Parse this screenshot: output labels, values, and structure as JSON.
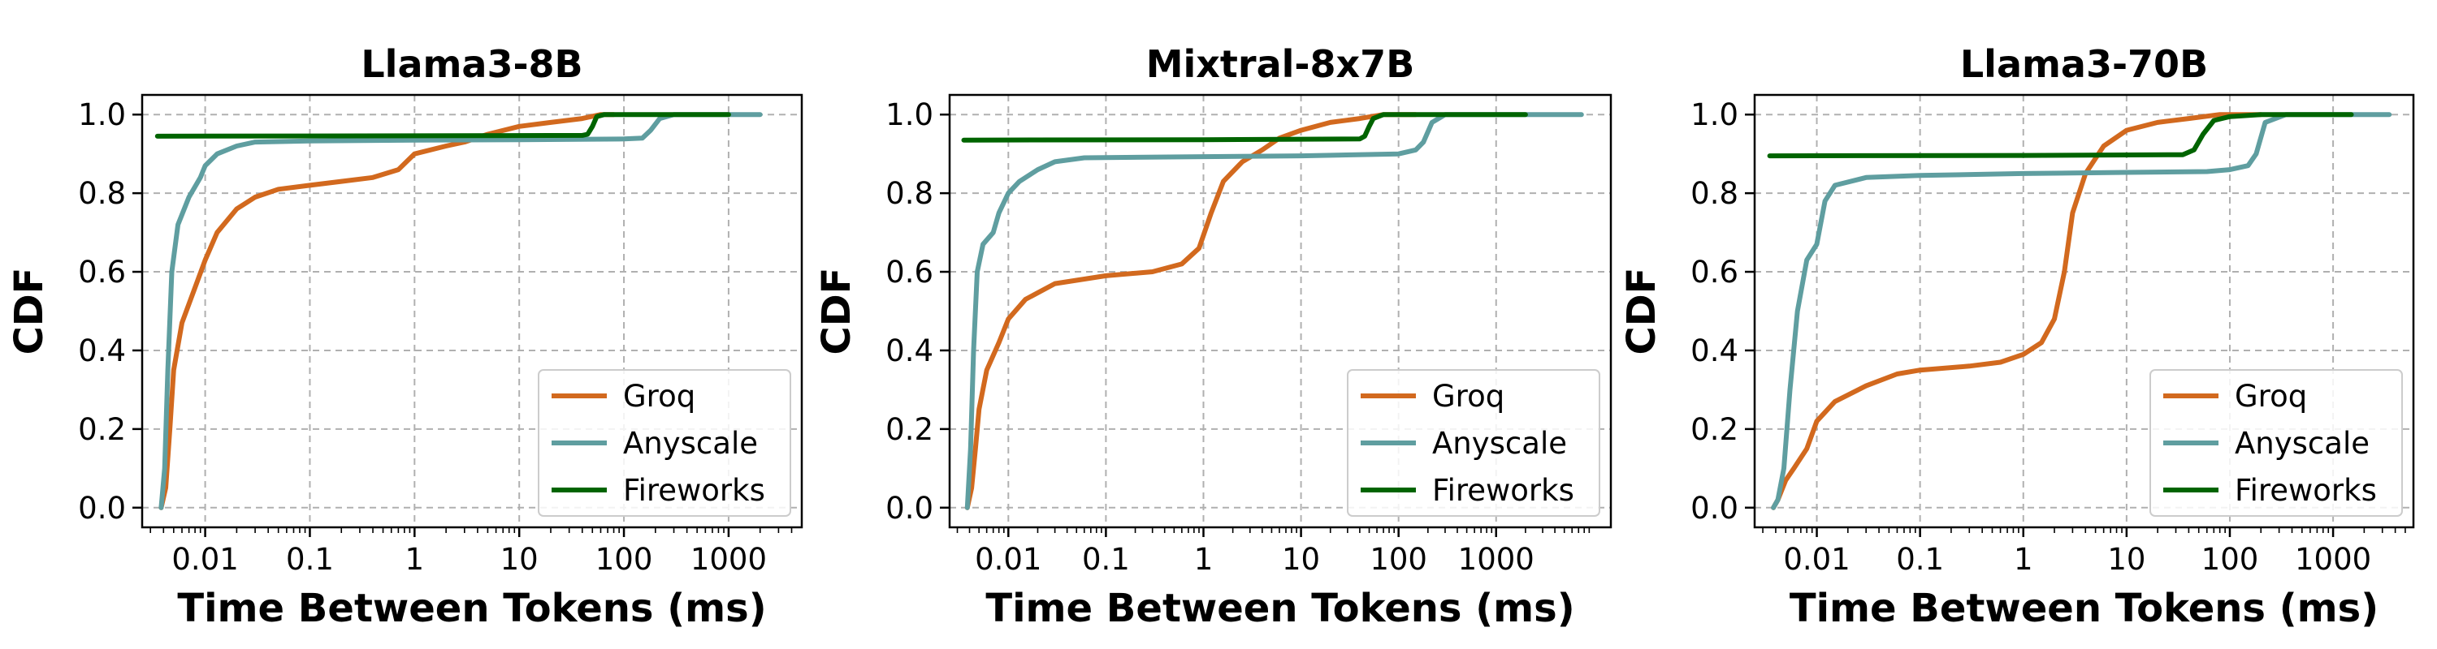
{
  "colors": {
    "Groq": "#d2691e",
    "Anyscale": "#5f9ea0",
    "Fireworks": "#006400"
  },
  "chart_data": [
    {
      "type": "line",
      "title": "Llama3-8B",
      "xlabel": "Time Between Tokens (ms)",
      "ylabel": "CDF",
      "xscale": "log",
      "xlim": [
        0.0025,
        5000
      ],
      "ylim": [
        -0.05,
        1.05
      ],
      "xticks": [
        0.01,
        0.1,
        1,
        10,
        100,
        1000
      ],
      "xtick_labels": [
        "0.01",
        "0.1",
        "1",
        "10",
        "100",
        "1000"
      ],
      "yticks": [
        0.0,
        0.2,
        0.4,
        0.6,
        0.8,
        1.0
      ],
      "ytick_labels": [
        "0.0",
        "0.2",
        "0.4",
        "0.6",
        "0.8",
        "1.0"
      ],
      "grid": true,
      "legend": "lower-right",
      "series": [
        {
          "name": "Groq",
          "points": [
            [
              0.0038,
              0
            ],
            [
              0.0042,
              0.05
            ],
            [
              0.0046,
              0.2
            ],
            [
              0.005,
              0.35
            ],
            [
              0.006,
              0.47
            ],
            [
              0.008,
              0.56
            ],
            [
              0.01,
              0.63
            ],
            [
              0.013,
              0.7
            ],
            [
              0.02,
              0.76
            ],
            [
              0.03,
              0.79
            ],
            [
              0.05,
              0.81
            ],
            [
              0.1,
              0.82
            ],
            [
              0.2,
              0.83
            ],
            [
              0.4,
              0.84
            ],
            [
              0.7,
              0.86
            ],
            [
              1,
              0.9
            ],
            [
              2,
              0.92
            ],
            [
              3,
              0.93
            ],
            [
              5,
              0.95
            ],
            [
              10,
              0.97
            ],
            [
              20,
              0.98
            ],
            [
              40,
              0.99
            ],
            [
              60,
              1.0
            ],
            [
              80,
              1.0
            ]
          ]
        },
        {
          "name": "Anyscale",
          "points": [
            [
              0.0038,
              0
            ],
            [
              0.0041,
              0.1
            ],
            [
              0.0044,
              0.35
            ],
            [
              0.0048,
              0.6
            ],
            [
              0.0055,
              0.72
            ],
            [
              0.007,
              0.79
            ],
            [
              0.009,
              0.84
            ],
            [
              0.01,
              0.87
            ],
            [
              0.013,
              0.9
            ],
            [
              0.02,
              0.92
            ],
            [
              0.03,
              0.93
            ],
            [
              0.1,
              0.933
            ],
            [
              1,
              0.935
            ],
            [
              10,
              0.936
            ],
            [
              100,
              0.938
            ],
            [
              150,
              0.94
            ],
            [
              180,
              0.96
            ],
            [
              220,
              0.99
            ],
            [
              300,
              1.0
            ],
            [
              2000,
              1.0
            ]
          ]
        },
        {
          "name": "Fireworks",
          "points": [
            [
              0.0035,
              0.945
            ],
            [
              1,
              0.946
            ],
            [
              40,
              0.947
            ],
            [
              45,
              0.95
            ],
            [
              50,
              0.97
            ],
            [
              55,
              0.995
            ],
            [
              65,
              1.0
            ],
            [
              1000,
              1.0
            ]
          ]
        }
      ]
    },
    {
      "type": "line",
      "title": "Mixtral-8x7B",
      "xlabel": "Time Between Tokens (ms)",
      "ylabel": "CDF",
      "xscale": "log",
      "xlim": [
        0.0025,
        15000
      ],
      "ylim": [
        -0.05,
        1.05
      ],
      "xticks": [
        0.01,
        0.1,
        1,
        10,
        100,
        1000
      ],
      "xtick_labels": [
        "0.01",
        "0.1",
        "1",
        "10",
        "100",
        "1000"
      ],
      "yticks": [
        0.0,
        0.2,
        0.4,
        0.6,
        0.8,
        1.0
      ],
      "ytick_labels": [
        "0.0",
        "0.2",
        "0.4",
        "0.6",
        "0.8",
        "1.0"
      ],
      "grid": true,
      "legend": "lower-right",
      "series": [
        {
          "name": "Groq",
          "points": [
            [
              0.0038,
              0
            ],
            [
              0.0042,
              0.05
            ],
            [
              0.0046,
              0.15
            ],
            [
              0.005,
              0.25
            ],
            [
              0.006,
              0.35
            ],
            [
              0.008,
              0.42
            ],
            [
              0.01,
              0.48
            ],
            [
              0.015,
              0.53
            ],
            [
              0.03,
              0.57
            ],
            [
              0.1,
              0.59
            ],
            [
              0.3,
              0.6
            ],
            [
              0.6,
              0.62
            ],
            [
              0.9,
              0.66
            ],
            [
              1.2,
              0.75
            ],
            [
              1.6,
              0.83
            ],
            [
              2.5,
              0.88
            ],
            [
              4,
              0.91
            ],
            [
              6,
              0.94
            ],
            [
              10,
              0.96
            ],
            [
              20,
              0.98
            ],
            [
              40,
              0.99
            ],
            [
              70,
              1.0
            ],
            [
              150,
              1.0
            ]
          ]
        },
        {
          "name": "Anyscale",
          "points": [
            [
              0.0038,
              0
            ],
            [
              0.0041,
              0.15
            ],
            [
              0.0044,
              0.4
            ],
            [
              0.0048,
              0.6
            ],
            [
              0.0055,
              0.67
            ],
            [
              0.007,
              0.7
            ],
            [
              0.008,
              0.75
            ],
            [
              0.01,
              0.8
            ],
            [
              0.013,
              0.83
            ],
            [
              0.02,
              0.86
            ],
            [
              0.03,
              0.88
            ],
            [
              0.06,
              0.89
            ],
            [
              1,
              0.893
            ],
            [
              10,
              0.895
            ],
            [
              100,
              0.9
            ],
            [
              150,
              0.91
            ],
            [
              180,
              0.93
            ],
            [
              220,
              0.98
            ],
            [
              300,
              1.0
            ],
            [
              7500,
              1.0
            ]
          ]
        },
        {
          "name": "Fireworks",
          "points": [
            [
              0.0035,
              0.935
            ],
            [
              1,
              0.936
            ],
            [
              40,
              0.938
            ],
            [
              45,
              0.945
            ],
            [
              50,
              0.97
            ],
            [
              55,
              0.99
            ],
            [
              70,
              1.0
            ],
            [
              2000,
              1.0
            ]
          ]
        }
      ]
    },
    {
      "type": "line",
      "title": "Llama3-70B",
      "xlabel": "Time Between Tokens (ms)",
      "ylabel": "CDF",
      "xscale": "log",
      "xlim": [
        0.0025,
        6000
      ],
      "ylim": [
        -0.05,
        1.05
      ],
      "xticks": [
        0.01,
        0.1,
        1,
        10,
        100,
        1000
      ],
      "xtick_labels": [
        "0.01",
        "0.1",
        "1",
        "10",
        "100",
        "1000"
      ],
      "yticks": [
        0.0,
        0.2,
        0.4,
        0.6,
        0.8,
        1.0
      ],
      "ytick_labels": [
        "0.0",
        "0.2",
        "0.4",
        "0.6",
        "0.8",
        "1.0"
      ],
      "grid": true,
      "legend": "lower-right",
      "series": [
        {
          "name": "Groq",
          "points": [
            [
              0.0038,
              0
            ],
            [
              0.0042,
              0.02
            ],
            [
              0.005,
              0.07
            ],
            [
              0.006,
              0.1
            ],
            [
              0.008,
              0.15
            ],
            [
              0.01,
              0.22
            ],
            [
              0.015,
              0.27
            ],
            [
              0.03,
              0.31
            ],
            [
              0.06,
              0.34
            ],
            [
              0.1,
              0.35
            ],
            [
              0.3,
              0.36
            ],
            [
              0.6,
              0.37
            ],
            [
              1,
              0.39
            ],
            [
              1.5,
              0.42
            ],
            [
              2,
              0.48
            ],
            [
              2.5,
              0.6
            ],
            [
              3,
              0.75
            ],
            [
              4,
              0.85
            ],
            [
              6,
              0.92
            ],
            [
              10,
              0.96
            ],
            [
              20,
              0.98
            ],
            [
              40,
              0.99
            ],
            [
              80,
              1.0
            ],
            [
              200,
              1.0
            ]
          ]
        },
        {
          "name": "Anyscale",
          "points": [
            [
              0.0038,
              0
            ],
            [
              0.0042,
              0.02
            ],
            [
              0.0048,
              0.1
            ],
            [
              0.0055,
              0.3
            ],
            [
              0.0065,
              0.5
            ],
            [
              0.008,
              0.63
            ],
            [
              0.01,
              0.67
            ],
            [
              0.012,
              0.78
            ],
            [
              0.015,
              0.82
            ],
            [
              0.03,
              0.84
            ],
            [
              0.1,
              0.845
            ],
            [
              1,
              0.85
            ],
            [
              10,
              0.853
            ],
            [
              60,
              0.855
            ],
            [
              100,
              0.86
            ],
            [
              150,
              0.87
            ],
            [
              180,
              0.9
            ],
            [
              220,
              0.98
            ],
            [
              350,
              1.0
            ],
            [
              3500,
              1.0
            ]
          ]
        },
        {
          "name": "Fireworks",
          "points": [
            [
              0.0035,
              0.895
            ],
            [
              1,
              0.896
            ],
            [
              35,
              0.898
            ],
            [
              45,
              0.91
            ],
            [
              55,
              0.95
            ],
            [
              70,
              0.985
            ],
            [
              100,
              0.995
            ],
            [
              200,
              1.0
            ],
            [
              1500,
              1.0
            ]
          ]
        }
      ]
    }
  ]
}
